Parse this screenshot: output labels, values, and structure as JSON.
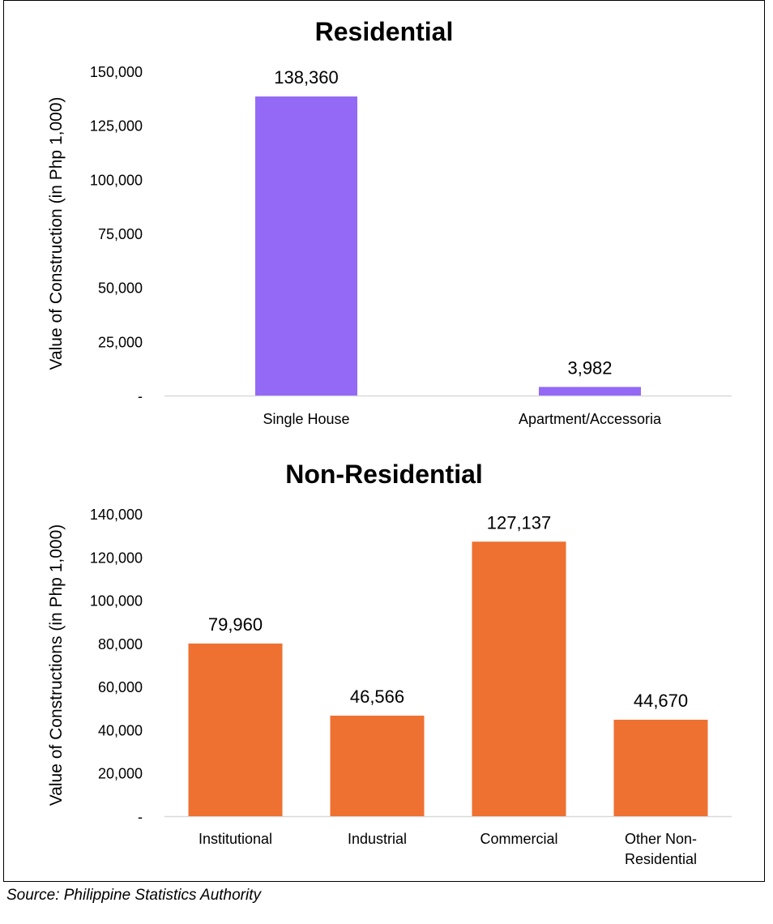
{
  "source": "Source: Philippine Statistics Authority",
  "chart_data": [
    {
      "type": "bar",
      "title": "Residential",
      "ylabel": "Value of Construction (in Php 1,000)",
      "categories": [
        "Single House",
        "Apartment/Accessoria"
      ],
      "values": [
        138360,
        3982
      ],
      "value_labels": [
        "138,360",
        "3,982"
      ],
      "ylim": [
        0,
        150000
      ],
      "yticks": [
        0,
        25000,
        50000,
        75000,
        100000,
        125000,
        150000
      ],
      "ytick_labels": [
        "-",
        "25,000",
        "50,000",
        "75,000",
        "100,000",
        "125,000",
        "150,000"
      ],
      "color": "#9469F5",
      "grid": false,
      "legend": "none"
    },
    {
      "type": "bar",
      "title": "Non-Residential",
      "ylabel": "Value of Constructions (in Php 1,000)",
      "categories": [
        "Institutional",
        "Industrial",
        "Commercial",
        "Other Non-\nResidential"
      ],
      "values": [
        79960,
        46566,
        127137,
        44670
      ],
      "value_labels": [
        "79,960",
        "46,566",
        "127,137",
        "44,670"
      ],
      "ylim": [
        0,
        140000
      ],
      "yticks": [
        0,
        20000,
        40000,
        60000,
        80000,
        100000,
        120000,
        140000
      ],
      "ytick_labels": [
        "-",
        "20,000",
        "40,000",
        "60,000",
        "80,000",
        "100,000",
        "120,000",
        "140,000"
      ],
      "color": "#EE7131",
      "grid": false,
      "legend": "none"
    }
  ]
}
